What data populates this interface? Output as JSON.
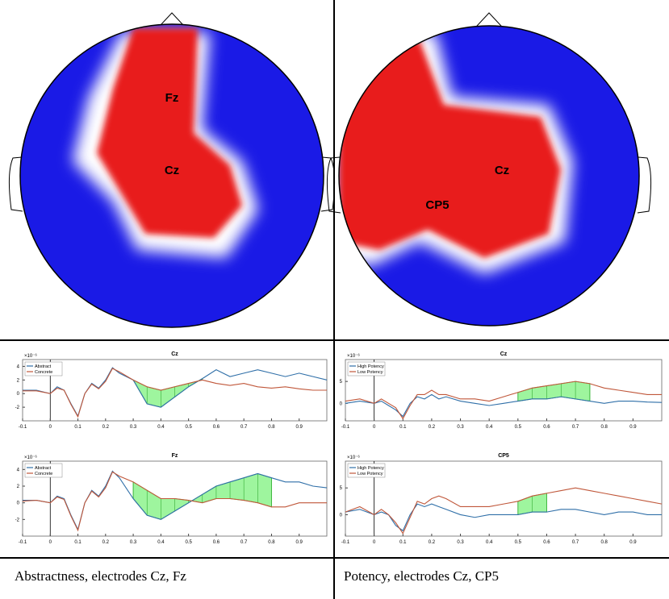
{
  "chart_data": [
    {
      "type": "line",
      "title": "Cz",
      "exponent": "×10⁻⁶",
      "grid": false,
      "legend": "upper left",
      "x": [
        -0.1,
        -0.05,
        0,
        0.025,
        0.05,
        0.075,
        0.1,
        0.125,
        0.15,
        0.175,
        0.2,
        0.225,
        0.25,
        0.3,
        0.35,
        0.4,
        0.45,
        0.5,
        0.55,
        0.6,
        0.65,
        0.7,
        0.75,
        0.8,
        0.85,
        0.9,
        0.95,
        1.0
      ],
      "series": [
        {
          "name": "Abstract",
          "color": "#2f6fa8",
          "values": [
            0.5,
            0.5,
            0,
            1,
            0.5,
            -1.5,
            -3.3,
            0,
            1.5,
            0.8,
            2,
            3.8,
            3,
            2,
            -1.5,
            -2,
            -0.5,
            1,
            2.2,
            3.5,
            2.5,
            3,
            3.5,
            3,
            2.5,
            3,
            2.5,
            2
          ]
        },
        {
          "name": "Concrete",
          "color": "#c0573a",
          "values": [
            0.4,
            0.4,
            0,
            0.8,
            0.5,
            -1.6,
            -3.4,
            0,
            1.4,
            0.7,
            1.8,
            3.7,
            3.2,
            2,
            1,
            0.5,
            1,
            1.5,
            2,
            1.5,
            1.2,
            1.5,
            1,
            0.8,
            1,
            0.7,
            0.5,
            0.5
          ]
        }
      ],
      "shaded": [
        0.3,
        0.55
      ],
      "shade_color": "#9ef59e",
      "xlim": [
        -0.1,
        1.0
      ],
      "xticks": [
        -0.1,
        0,
        0.1,
        0.2,
        0.3,
        0.4,
        0.5,
        0.6,
        0.7,
        0.8,
        0.9
      ],
      "ylim": [
        -4,
        5
      ],
      "yticks": [
        -2,
        0,
        2,
        4
      ]
    },
    {
      "type": "line",
      "title": "Fz",
      "exponent": "×10⁻⁶",
      "grid": false,
      "legend": "upper left",
      "x": [
        -0.1,
        -0.05,
        0,
        0.025,
        0.05,
        0.075,
        0.1,
        0.125,
        0.15,
        0.175,
        0.2,
        0.225,
        0.25,
        0.3,
        0.35,
        0.4,
        0.45,
        0.5,
        0.55,
        0.6,
        0.65,
        0.7,
        0.75,
        0.8,
        0.85,
        0.9,
        0.95,
        1.0
      ],
      "series": [
        {
          "name": "Abstract",
          "color": "#2f6fa8",
          "values": [
            0.3,
            0.3,
            0,
            0.8,
            0.5,
            -1.5,
            -3.2,
            0,
            1.5,
            0.8,
            2,
            3.8,
            3,
            0.5,
            -1.5,
            -2,
            -1,
            0,
            1,
            2,
            2.5,
            3,
            3.5,
            3,
            2.5,
            2.5,
            2,
            1.8
          ]
        },
        {
          "name": "Concrete",
          "color": "#c0573a",
          "values": [
            0.2,
            0.3,
            0,
            0.7,
            0.4,
            -1.6,
            -3.3,
            0,
            1.4,
            0.7,
            1.8,
            3.7,
            3.2,
            2.5,
            1.5,
            0.5,
            0.5,
            0.3,
            0,
            0.5,
            0.5,
            0.3,
            0,
            -0.5,
            -0.5,
            0,
            0,
            0
          ]
        }
      ],
      "shaded": [
        0.3,
        0.8
      ],
      "shade_color": "#9ef59e",
      "xlim": [
        -0.1,
        1.0
      ],
      "xticks": [
        -0.1,
        0,
        0.1,
        0.2,
        0.3,
        0.4,
        0.5,
        0.6,
        0.7,
        0.8,
        0.9
      ],
      "ylim": [
        -4,
        5
      ],
      "yticks": [
        -2,
        0,
        2,
        4
      ]
    },
    {
      "type": "line",
      "title": "Cz",
      "exponent": "×10⁻⁶",
      "grid": false,
      "legend": "upper left",
      "x": [
        -0.1,
        -0.05,
        0,
        0.025,
        0.05,
        0.075,
        0.1,
        0.125,
        0.15,
        0.175,
        0.2,
        0.225,
        0.25,
        0.3,
        0.35,
        0.4,
        0.45,
        0.5,
        0.55,
        0.6,
        0.65,
        0.7,
        0.75,
        0.8,
        0.85,
        0.9,
        0.95,
        1.0
      ],
      "series": [
        {
          "name": "High Potency",
          "color": "#2f6fa8",
          "values": [
            0,
            0.5,
            0,
            0.5,
            -0.5,
            -1.5,
            -3,
            0,
            1.5,
            1,
            2,
            1,
            1.5,
            0.5,
            0,
            -0.5,
            0,
            0.5,
            1,
            1,
            1.5,
            1,
            0.5,
            0,
            0.5,
            0.5,
            0.3,
            0.2
          ]
        },
        {
          "name": "Low Potency",
          "color": "#c0573a",
          "values": [
            0.5,
            1,
            0,
            1,
            0,
            -1,
            -3.5,
            -0.5,
            2,
            2,
            3,
            2,
            2,
            1,
            1,
            0.5,
            1.5,
            2.5,
            3.5,
            4,
            4.5,
            5,
            4.5,
            3.5,
            3,
            2.5,
            2,
            2
          ]
        }
      ],
      "shaded": [
        0.5,
        0.75
      ],
      "shade_color": "#9ef59e",
      "xlim": [
        -0.1,
        1.0
      ],
      "xticks": [
        -0.1,
        0,
        0.1,
        0.2,
        0.3,
        0.4,
        0.5,
        0.6,
        0.7,
        0.8,
        0.9
      ],
      "ylim": [
        -4,
        10
      ],
      "yticks": [
        0,
        5
      ]
    },
    {
      "type": "line",
      "title": "CP5",
      "exponent": "×10⁻⁶",
      "grid": false,
      "legend": "upper left",
      "x": [
        -0.1,
        -0.05,
        0,
        0.025,
        0.05,
        0.075,
        0.1,
        0.125,
        0.15,
        0.175,
        0.2,
        0.225,
        0.25,
        0.3,
        0.35,
        0.4,
        0.45,
        0.5,
        0.55,
        0.6,
        0.65,
        0.7,
        0.75,
        0.8,
        0.85,
        0.9,
        0.95,
        1.0
      ],
      "series": [
        {
          "name": "High Potency",
          "color": "#2f6fa8",
          "values": [
            0.5,
            1,
            0,
            0.5,
            0,
            -2,
            -3,
            0,
            2,
            1.5,
            2,
            1.5,
            1,
            0,
            -0.5,
            0,
            0,
            0,
            0.5,
            0.5,
            1,
            1,
            0.5,
            0,
            0.5,
            0.5,
            0,
            0
          ]
        },
        {
          "name": "Low Potency",
          "color": "#c0573a",
          "values": [
            0.5,
            1.5,
            0,
            1,
            0,
            -1.5,
            -3.5,
            -0.5,
            2.5,
            2,
            3,
            3.5,
            3,
            1.5,
            1.5,
            1.5,
            2,
            2.5,
            3.5,
            4,
            4.5,
            5,
            4.5,
            4,
            3.5,
            3,
            2.5,
            2
          ]
        }
      ],
      "shaded": [
        0.5,
        0.6
      ],
      "shade_color": "#9ef59e",
      "xlim": [
        -0.1,
        1.0
      ],
      "xticks": [
        -0.1,
        0,
        0.1,
        0.2,
        0.3,
        0.4,
        0.5,
        0.6,
        0.7,
        0.8,
        0.9
      ],
      "ylim": [
        -4,
        10
      ],
      "yticks": [
        0,
        5
      ]
    }
  ],
  "topomaps": [
    {
      "labels": [
        "Fz",
        "Cz"
      ]
    },
    {
      "labels": [
        "Cz",
        "CP5"
      ]
    }
  ],
  "captions": [
    "Abstractness, electrodes Cz, Fz",
    "Potency, electrodes Cz, CP5"
  ]
}
